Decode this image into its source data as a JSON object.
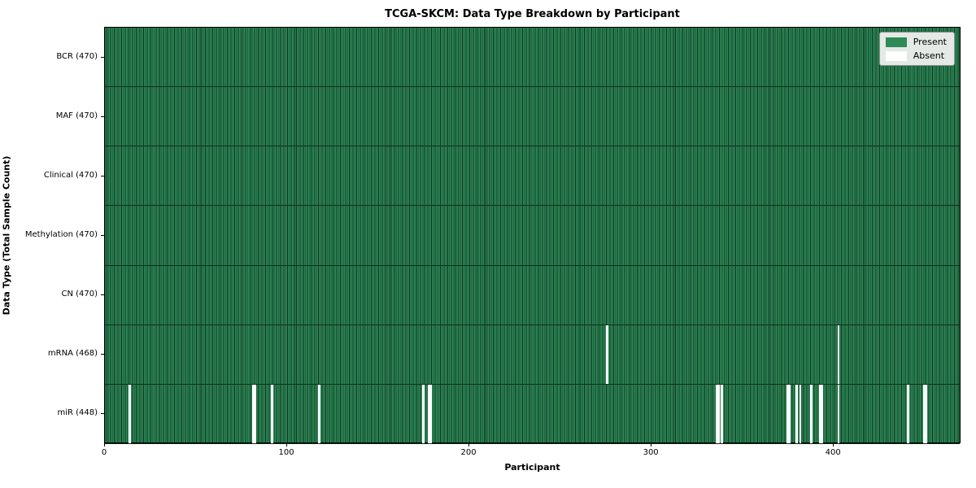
{
  "chart_data": {
    "type": "heatmap",
    "title": "TCGA-SKCM: Data Type Breakdown by Participant",
    "xlabel": "Participant",
    "ylabel": "Data Type (Total Sample Count)",
    "x_ticks": [
      0,
      100,
      200,
      300,
      400
    ],
    "x_range": [
      0,
      470
    ],
    "n_participants": 470,
    "grid": "per-cell vertical borders, row separator lines",
    "legend_position": "upper-right",
    "colors": {
      "present": "#2e8b57",
      "absent": "#ffffff",
      "cell_border": "#0e3320",
      "legend_bg": "#eef0ee"
    },
    "legend": [
      {
        "label": "Present",
        "color": "#2e8b57"
      },
      {
        "label": "Absent",
        "color": "#ffffff"
      }
    ],
    "rows": [
      {
        "label": "BCR (470)",
        "data_type": "BCR",
        "total": 470,
        "absent_participants": []
      },
      {
        "label": "MAF (470)",
        "data_type": "MAF",
        "total": 470,
        "absent_participants": []
      },
      {
        "label": "Clinical (470)",
        "data_type": "Clinical",
        "total": 470,
        "absent_participants": []
      },
      {
        "label": "Methylation (470)",
        "data_type": "Methylation",
        "total": 470,
        "absent_participants": []
      },
      {
        "label": "CN (470)",
        "data_type": "CN",
        "total": 470,
        "absent_participants": []
      },
      {
        "label": "mRNA (468)",
        "data_type": "mRNA",
        "total": 468,
        "absent_participants": [
          275,
          402
        ]
      },
      {
        "label": "miR (448)",
        "data_type": "miR",
        "total": 448,
        "absent_participants": [
          13,
          81,
          82,
          91,
          117,
          174,
          177,
          178,
          335,
          336,
          338,
          374,
          375,
          379,
          381,
          387,
          392,
          393,
          402,
          440,
          449,
          450
        ]
      }
    ]
  }
}
